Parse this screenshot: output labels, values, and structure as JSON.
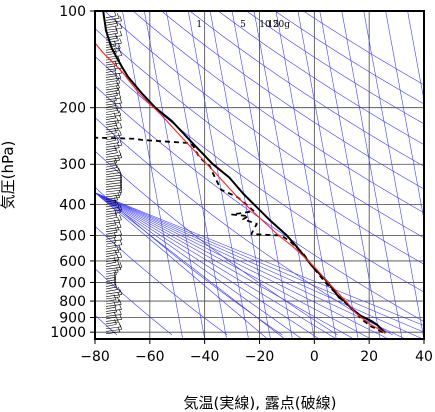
{
  "chart_data": {
    "type": "line",
    "title": "",
    "xlabel": "気温(実線), 露点(破線)",
    "ylabel": "気圧(hPa)",
    "xlim": [
      -80,
      40
    ],
    "ylim": [
      1050,
      100
    ],
    "y_scale": "log",
    "x_ticks": [
      -80,
      -60,
      -40,
      -20,
      0,
      20,
      40
    ],
    "y_ticks": [
      100,
      200,
      300,
      400,
      500,
      600,
      700,
      800,
      900,
      1000
    ],
    "mixing_ratio_labels": [
      "1",
      "5",
      "10",
      "15",
      "20g"
    ],
    "series": [
      {
        "style": "solid-black",
        "points": [
          [
            26,
            1005
          ],
          [
            25,
            990
          ],
          [
            23,
            950
          ],
          [
            21,
            925
          ],
          [
            17,
            890
          ],
          [
            14,
            850
          ],
          [
            11,
            800
          ],
          [
            9,
            780
          ],
          [
            5,
            700
          ],
          [
            -1,
            620
          ],
          [
            -5,
            560
          ],
          [
            -10,
            500
          ],
          [
            -16,
            450
          ],
          [
            -22,
            400
          ],
          [
            -26,
            370
          ],
          [
            -31,
            330
          ],
          [
            -37,
            300
          ],
          [
            -44,
            260
          ],
          [
            -52,
            220
          ],
          [
            -58,
            200
          ],
          [
            -63,
            180
          ],
          [
            -68,
            160
          ],
          [
            -70,
            150
          ],
          [
            -72,
            140
          ],
          [
            -74,
            130
          ],
          [
            -76,
            115
          ],
          [
            -77,
            100
          ]
        ]
      },
      {
        "style": "dashed-black",
        "points": [
          [
            25,
            1000
          ],
          [
            24,
            990
          ],
          [
            22,
            970
          ],
          [
            20,
            955
          ],
          [
            19,
            935
          ],
          [
            17,
            910
          ],
          [
            16,
            880
          ],
          [
            14,
            850
          ],
          [
            12,
            820
          ],
          [
            10,
            790
          ],
          [
            4,
            700
          ],
          [
            -1,
            620
          ],
          [
            -4,
            570
          ],
          [
            -9,
            520
          ],
          [
            -12,
            500
          ],
          [
            -23,
            495
          ],
          [
            -21,
            460
          ],
          [
            -26,
            445
          ],
          [
            -24,
            435
          ],
          [
            -30,
            430
          ],
          [
            -22,
            420
          ],
          [
            -28,
            380
          ],
          [
            -34,
            360
          ],
          [
            -37,
            320
          ],
          [
            -38,
            305
          ],
          [
            -42,
            285
          ],
          [
            -44,
            265
          ],
          [
            -45,
            258
          ],
          [
            -63,
            252
          ],
          [
            -65,
            250
          ],
          [
            -71,
            249
          ],
          [
            -80,
            248
          ]
        ]
      },
      {
        "style": "solid-red",
        "points": [
          [
            26,
            1005
          ],
          [
            20,
            940
          ],
          [
            15,
            870
          ],
          [
            12,
            810
          ],
          [
            9,
            760
          ],
          [
            5,
            700
          ],
          [
            1,
            640
          ],
          [
            -3,
            590
          ],
          [
            -8,
            540
          ],
          [
            -13,
            500
          ],
          [
            -20,
            440
          ],
          [
            -28,
            380
          ],
          [
            -36,
            320
          ],
          [
            -46,
            260
          ],
          [
            -56,
            210
          ],
          [
            -64,
            180
          ],
          [
            -70,
            155
          ],
          [
            -77,
            135
          ],
          [
            -82,
            120
          ]
        ]
      }
    ],
    "wind_column": "wind barbs along the left edge",
    "grid": true
  }
}
